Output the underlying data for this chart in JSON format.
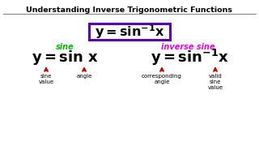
{
  "title": "Understanding Inverse Trigonometric Functions",
  "left_label": "sine",
  "right_label": "inverse sine",
  "annotations_left": [
    "sine\nvalue",
    "angle"
  ],
  "annotations_right": [
    "corresponding\nangle",
    "valid\nsine\nvalue"
  ],
  "bg_color": "#ffffff",
  "title_color": "#000000",
  "box_border_color": "#5500bb",
  "left_label_color": "#00bb00",
  "right_label_color": "#ee00ee",
  "eq_color": "#000000",
  "arrow_color": "#cc0000",
  "annotation_color": "#000000",
  "line_color": "#888888"
}
